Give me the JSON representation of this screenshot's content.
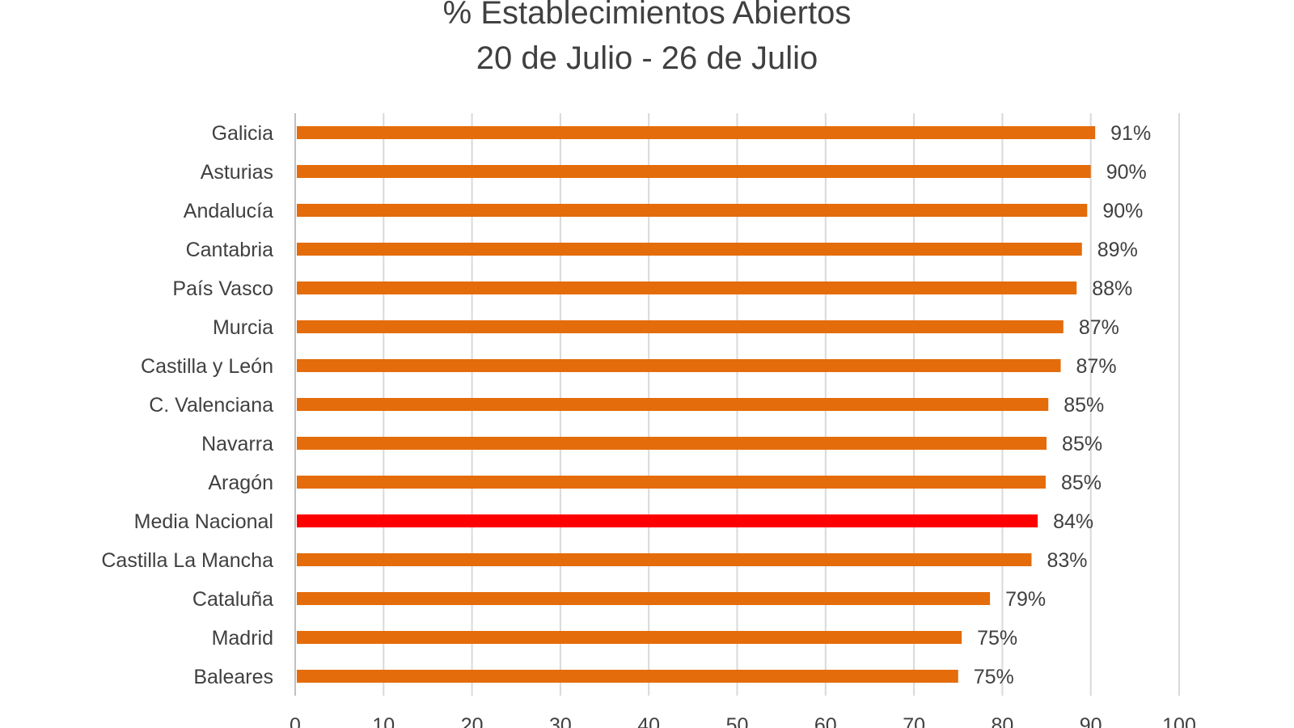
{
  "chart_data": {
    "type": "bar",
    "orientation": "horizontal",
    "title": "% Establecimientos Abiertos",
    "subtitle": "20 de Julio - 26 de Julio",
    "categories": [
      "Galicia",
      "Asturias",
      "Andalucía",
      "Cantabria",
      "País Vasco",
      "Murcia",
      "Castilla y León",
      "C. Valenciana",
      "Navarra",
      "Aragón",
      "Media Nacional",
      "Castilla La Mancha",
      "Cataluña",
      "Madrid",
      "Baleares"
    ],
    "values": [
      90.5,
      90.0,
      89.6,
      89.0,
      88.4,
      86.9,
      86.6,
      85.2,
      85.0,
      84.9,
      84.0,
      83.3,
      78.6,
      75.4,
      75.0
    ],
    "value_labels": [
      "91%",
      "90%",
      "90%",
      "89%",
      "88%",
      "87%",
      "87%",
      "85%",
      "85%",
      "85%",
      "84%",
      "83%",
      "79%",
      "75%",
      "75%"
    ],
    "xlim": [
      0,
      100
    ],
    "xticks": [
      "0",
      "10",
      "20",
      "30",
      "40",
      "50",
      "60",
      "70",
      "80",
      "90",
      "100"
    ],
    "grid": true,
    "colors": {
      "bar": "#E46C0A",
      "highlight": "#FF0000",
      "highlight_category": "Media Nacional",
      "grid": "#D9D9D9",
      "text": "#404040"
    }
  }
}
